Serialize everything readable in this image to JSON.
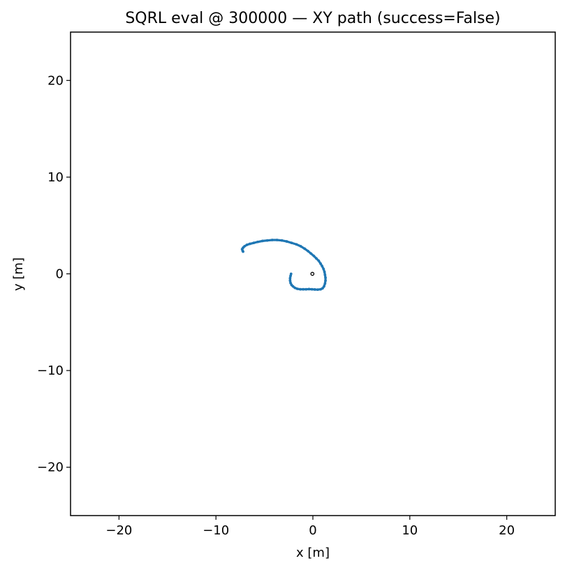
{
  "chart_data": {
    "type": "scatter",
    "title": "SQRL eval @ 300000 — XY path (success=False)",
    "xlabel": "x [m]",
    "ylabel": "y [m]",
    "xlim": [
      -25,
      25
    ],
    "ylim": [
      -25,
      25
    ],
    "xticks": [
      -20,
      -10,
      0,
      10,
      20
    ],
    "yticks": [
      -20,
      -10,
      0,
      10,
      20
    ],
    "xtick_labels": [
      "−20",
      "−10",
      "0",
      "10",
      "20"
    ],
    "ytick_labels": [
      "−20",
      "−10",
      "0",
      "10",
      "20"
    ],
    "grid": false,
    "legend": "none",
    "series": [
      {
        "color": "#1f77b4",
        "x": [
          -2.25,
          -2.3,
          -2.35,
          -2.35,
          -2.3,
          -2.2,
          -2.05,
          -1.85,
          -1.6,
          -1.3,
          -1.0,
          -0.7,
          -0.4,
          -0.1,
          0.2,
          0.5,
          0.8,
          1.0,
          1.15,
          1.25,
          1.3,
          1.3,
          1.25,
          1.2,
          1.1,
          0.95,
          0.8,
          0.6,
          0.35,
          0.1,
          -0.2,
          -0.5,
          -0.85,
          -1.25,
          -1.7,
          -2.2,
          -2.7,
          -3.2,
          -3.7,
          -4.2,
          -4.7,
          -5.2,
          -5.7,
          -6.1,
          -6.5,
          -6.8,
          -7.05,
          -7.2,
          -7.3,
          -7.25,
          -7.2
        ],
        "y": [
          0.0,
          -0.2,
          -0.45,
          -0.7,
          -0.95,
          -1.15,
          -1.3,
          -1.45,
          -1.55,
          -1.6,
          -1.6,
          -1.6,
          -1.58,
          -1.6,
          -1.62,
          -1.63,
          -1.6,
          -1.5,
          -1.3,
          -1.0,
          -0.7,
          -0.4,
          -0.1,
          0.2,
          0.5,
          0.8,
          1.05,
          1.35,
          1.6,
          1.85,
          2.1,
          2.35,
          2.6,
          2.85,
          3.05,
          3.2,
          3.35,
          3.45,
          3.5,
          3.5,
          3.45,
          3.4,
          3.3,
          3.2,
          3.1,
          3.0,
          2.85,
          2.7,
          2.55,
          2.4,
          2.3
        ]
      }
    ],
    "annotations": [
      {
        "type": "marker",
        "shape": "small-open-circle",
        "color": "#000000",
        "x": -0.05,
        "y": 0.0
      }
    ]
  }
}
